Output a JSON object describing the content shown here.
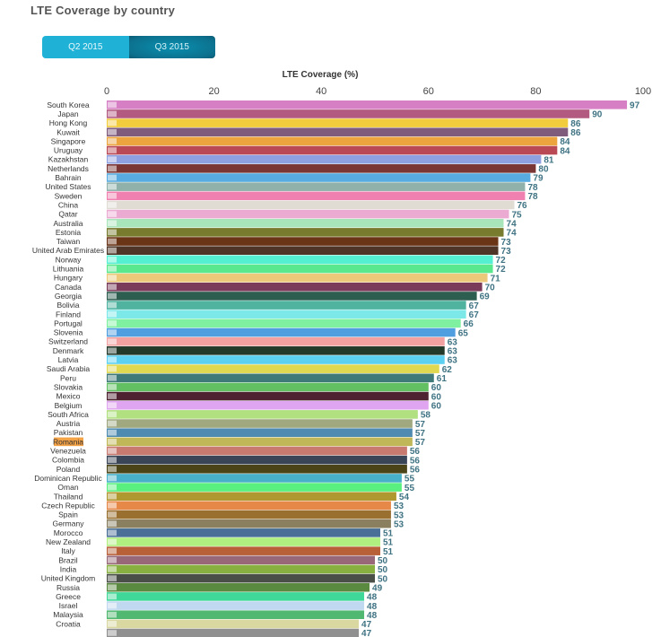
{
  "page": {
    "title": "LTE Coverage by country"
  },
  "toggle": {
    "q2_label": "Q2 2015",
    "q3_label": "Q3 2015",
    "selected": "Q3 2015"
  },
  "chart_data": {
    "type": "bar",
    "orientation": "horizontal",
    "title": "LTE Coverage by country",
    "xlabel": "LTE Coverage (%)",
    "ylabel": "",
    "xlim": [
      0,
      100
    ],
    "xticks": [
      0,
      20,
      40,
      60,
      80,
      100
    ],
    "highlighted_category": "Romania",
    "highlight_color": "#f5a347",
    "categories": [
      "South Korea",
      "Japan",
      "Hong Kong",
      "Kuwait",
      "Singapore",
      "Uruguay",
      "Kazakhstan",
      "Netherlands",
      "Bahrain",
      "United States",
      "Sweden",
      "China",
      "Qatar",
      "Australia",
      "Estonia",
      "Taiwan",
      "United Arab Emirates",
      "Norway",
      "Lithuania",
      "Hungary",
      "Canada",
      "Georgia",
      "Bolivia",
      "Finland",
      "Portugal",
      "Slovenia",
      "Switzerland",
      "Denmark",
      "Latvia",
      "Saudi Arabia",
      "Peru",
      "Slovakia",
      "Mexico",
      "Belgium",
      "South Africa",
      "Austria",
      "Pakistan",
      "Romania",
      "Venezuela",
      "Colombia",
      "Poland",
      "Dominican Republic",
      "Oman",
      "Thailand",
      "Czech Republic",
      "Spain",
      "Germany",
      "Morocco",
      "New Zealand",
      "Italy",
      "Brazil",
      "India",
      "United Kingdom",
      "Russia",
      "Greece",
      "Israel",
      "Malaysia",
      "Croatia",
      ""
    ],
    "values": [
      97,
      90,
      86,
      86,
      84,
      84,
      81,
      80,
      79,
      78,
      78,
      76,
      75,
      74,
      74,
      73,
      73,
      72,
      72,
      71,
      70,
      69,
      67,
      67,
      66,
      65,
      63,
      63,
      63,
      62,
      61,
      60,
      60,
      60,
      58,
      57,
      57,
      57,
      56,
      56,
      56,
      55,
      55,
      54,
      53,
      53,
      53,
      51,
      51,
      51,
      50,
      50,
      50,
      49,
      48,
      48,
      48,
      47,
      47
    ],
    "colors": [
      "#d67fc4",
      "#b25a7f",
      "#f1cc3c",
      "#7f5c7c",
      "#eba43e",
      "#b94a55",
      "#8ea0e0",
      "#7a3535",
      "#57abe0",
      "#8fb1aa",
      "#f080b0",
      "#e0dcd4",
      "#eaaad2",
      "#a9e5bb",
      "#787a2e",
      "#6a3417",
      "#4e3528",
      "#55f0d2",
      "#5ae88e",
      "#ecc97a",
      "#7a3a5a",
      "#2e5e50",
      "#4fb3a0",
      "#7de8e8",
      "#7ef0a0",
      "#4f9ee0",
      "#f2a0a0",
      "#23392a",
      "#5cd0f0",
      "#e0d850",
      "#3f7a78",
      "#62c062",
      "#4e2230",
      "#e0a5f0",
      "#b0e080",
      "#a0a880",
      "#4f8ab0",
      "#c0b858",
      "#c87a70",
      "#3a4558",
      "#4a4418",
      "#48b0c8",
      "#5af080",
      "#b09830",
      "#e68848",
      "#9a7030",
      "#8a8060",
      "#4a7098",
      "#b0f080",
      "#b86038",
      "#986878",
      "#88b040",
      "#4a5048",
      "#5a8a40",
      "#40d898",
      "#c0d8f0",
      "#50b870",
      "#d8d8a0",
      "#909090"
    ]
  }
}
